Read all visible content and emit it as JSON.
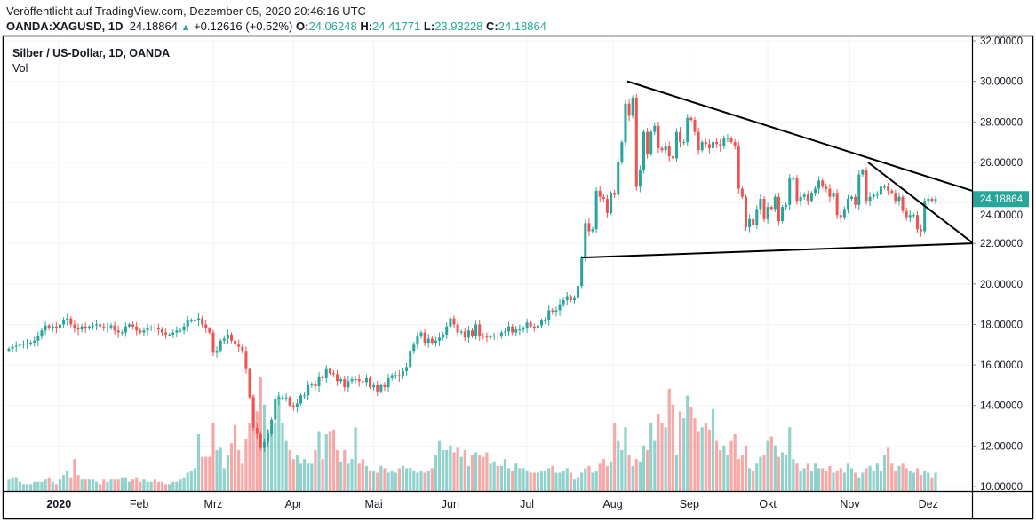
{
  "header": {
    "published": "Veröffentlicht auf TradingView.com, Dezember 05, 2020 20:46:16 UTC",
    "symbol": "OANDA:XAGUSD, 1D",
    "last": "24.18864",
    "change": "+0.12616 (+0.52%)",
    "o_label": "O:",
    "o": "24.06248",
    "h_label": "H:",
    "h": "24.41771",
    "l_label": "L:",
    "l": "23.93228",
    "c_label": "C:",
    "c": "24.18864"
  },
  "legend": {
    "title": "Silber / US-Dollar, 1D, OANDA",
    "volume": "Vol"
  },
  "colors": {
    "up": "#26a69a",
    "down": "#ef5350",
    "grid": "#f0f3fa",
    "line": "#000000"
  },
  "chart_data": {
    "type": "candlestick",
    "title": "Silber / US-Dollar, 1D, OANDA",
    "ylim": [
      10,
      32
    ],
    "y_ticks": [
      "32.00000",
      "30.00000",
      "28.00000",
      "26.00000",
      "24.00000",
      "22.00000",
      "20.00000",
      "18.00000",
      "16.00000",
      "14.00000",
      "12.00000",
      "10.00000"
    ],
    "y_tick_values": [
      32,
      30,
      28,
      26,
      24,
      22,
      20,
      18,
      16,
      14,
      12,
      10
    ],
    "last_price_label": "24.18864",
    "last_price": 24.18864,
    "x_ticks": [
      {
        "label": "2020",
        "index": 13.7
      },
      {
        "label": "Feb",
        "index": 35.7
      },
      {
        "label": "Mrz",
        "index": 56
      },
      {
        "label": "Apr",
        "index": 78
      },
      {
        "label": "Mai",
        "index": 100
      },
      {
        "label": "Jun",
        "index": 121
      },
      {
        "label": "Jul",
        "index": 142
      },
      {
        "label": "Aug",
        "index": 165.5
      },
      {
        "label": "Sep",
        "index": 186.5
      },
      {
        "label": "Okt",
        "index": 208
      },
      {
        "label": "Nov",
        "index": 230.5
      },
      {
        "label": "Dez",
        "index": 252
      }
    ],
    "closes": [
      16.8,
      16.9,
      16.95,
      17.0,
      17.05,
      17.05,
      17.1,
      17.2,
      17.4,
      17.7,
      17.95,
      17.8,
      17.9,
      17.8,
      18.0,
      18.2,
      18.3,
      18.0,
      17.8,
      17.75,
      17.9,
      17.8,
      17.9,
      17.95,
      18.0,
      17.9,
      17.85,
      17.85,
      17.95,
      17.7,
      17.6,
      17.6,
      17.9,
      18.0,
      17.9,
      17.7,
      17.6,
      17.7,
      17.8,
      17.85,
      17.8,
      17.75,
      17.6,
      17.5,
      17.5,
      17.6,
      17.7,
      17.7,
      17.9,
      18.2,
      18.2,
      18.2,
      18.3,
      18.0,
      17.8,
      17.6,
      16.6,
      16.7,
      17.2,
      17.3,
      17.5,
      17.2,
      17.0,
      16.9,
      16.7,
      15.8,
      14.4,
      12.9,
      12.6,
      11.9,
      12.2,
      12.6,
      13.3,
      14.3,
      14.4,
      14.4,
      14.4,
      14.0,
      13.9,
      14.1,
      14.5,
      14.5,
      15.0,
      15.05,
      14.95,
      15.4,
      15.35,
      15.8,
      15.6,
      15.55,
      15.2,
      15.3,
      14.9,
      15.2,
      15.3,
      15.3,
      15.2,
      15.15,
      15.35,
      14.9,
      15.0,
      14.7,
      15.0,
      14.9,
      15.35,
      15.5,
      15.5,
      15.45,
      15.7,
      15.9,
      16.7,
      17.0,
      17.4,
      17.6,
      17.1,
      17.3,
      17.1,
      17.2,
      17.35,
      17.5,
      17.9,
      18.3,
      18.0,
      17.6,
      17.65,
      17.35,
      17.7,
      17.45,
      18.0,
      17.45,
      17.4,
      17.35,
      17.4,
      17.45,
      17.4,
      17.6,
      17.65,
      17.9,
      17.6,
      17.75,
      17.75,
      17.8,
      18.1,
      17.9,
      17.8,
      17.95,
      18.2,
      18.2,
      18.7,
      18.6,
      18.7,
      19.0,
      19.2,
      19.4,
      19.2,
      19.3,
      19.9,
      21.3,
      23.0,
      22.6,
      22.7,
      24.6,
      24.3,
      24.2,
      23.5,
      24.5,
      24.4,
      26.0,
      27.0,
      28.9,
      28.3,
      29.2,
      24.8,
      25.6,
      27.5,
      26.4,
      27.5,
      27.8,
      26.7,
      26.6,
      26.8,
      26.3,
      26.2,
      27.5,
      27.0,
      27.0,
      28.2,
      28.1,
      27.5,
      26.6,
      27.0,
      26.9,
      26.7,
      27.0,
      26.9,
      26.8,
      27.2,
      27.2,
      27.0,
      26.8,
      24.7,
      24.3,
      22.8,
      23.2,
      22.9,
      23.7,
      24.2,
      23.2,
      23.8,
      23.7,
      24.3,
      23.1,
      23.8,
      23.9,
      25.2,
      25.2,
      24.1,
      24.3,
      24.4,
      24.1,
      24.5,
      24.7,
      25.1,
      24.8,
      24.7,
      24.3,
      24.5,
      23.4,
      23.3,
      23.7,
      24.2,
      24.3,
      23.9,
      25.4,
      25.6,
      24.1,
      24.3,
      24.4,
      24.4,
      24.8,
      24.8,
      24.6,
      24.5,
      24.1,
      24.3,
      23.6,
      23.3,
      23.4,
      23.4,
      22.7,
      22.6,
      24.1,
      24.2,
      24.1,
      24.19
    ],
    "volumes": [
      5,
      6,
      6,
      4,
      3,
      3,
      3,
      4,
      4,
      4,
      5,
      6,
      4,
      3,
      5,
      7,
      9,
      6,
      14,
      7,
      5,
      5,
      5,
      5,
      4,
      3,
      5,
      4,
      5,
      5,
      5,
      6,
      6,
      4,
      5,
      6,
      4,
      5,
      4,
      4,
      5,
      4,
      4,
      3,
      3,
      4,
      4,
      5,
      6,
      8,
      9,
      10,
      25,
      15,
      15,
      15,
      30,
      18,
      19,
      10,
      16,
      21,
      29,
      18,
      12,
      23,
      30,
      42,
      35,
      50,
      38,
      27,
      26,
      30,
      42,
      30,
      22,
      18,
      14,
      16,
      12,
      14,
      12,
      12,
      18,
      26,
      14,
      25,
      26,
      27,
      18,
      13,
      18,
      12,
      14,
      28,
      12,
      14,
      11,
      9,
      9,
      8,
      11,
      10,
      8,
      9,
      8,
      10,
      11,
      10,
      10,
      9,
      8,
      9,
      8,
      9,
      10,
      16,
      22,
      18,
      18,
      20,
      17,
      19,
      15,
      18,
      11,
      16,
      17,
      16,
      15,
      17,
      12,
      13,
      11,
      11,
      14,
      10,
      9,
      12,
      10,
      10,
      9,
      8,
      8,
      8,
      9,
      9,
      10,
      11,
      8,
      8,
      9,
      10,
      8,
      5,
      6,
      8,
      10,
      11,
      8,
      9,
      12,
      14,
      11,
      13,
      30,
      22,
      18,
      28,
      16,
      11,
      14,
      13,
      20,
      18,
      30,
      22,
      34,
      30,
      28,
      45,
      38,
      16,
      35,
      32,
      42,
      37,
      32,
      26,
      28,
      30,
      27,
      36,
      22,
      18,
      20,
      16,
      22,
      25,
      14,
      16,
      20,
      10,
      9,
      12,
      15,
      16,
      22,
      24,
      20,
      15,
      17,
      16,
      28,
      14,
      12,
      9,
      10,
      12,
      9,
      12,
      10,
      10,
      9,
      11,
      8,
      9,
      10,
      8,
      12,
      10,
      8,
      6,
      8,
      10,
      11,
      9,
      12,
      9,
      16,
      19,
      12,
      9,
      11,
      12,
      10,
      9,
      8,
      10,
      7,
      9,
      8,
      6,
      8,
      10,
      9,
      8,
      7,
      6,
      9,
      8,
      7,
      8,
      7,
      6
    ],
    "trend_lines": [
      {
        "from": [
          169.5,
          30.0
        ],
        "to": [
          265,
          24.6
        ]
      },
      {
        "from": [
          157,
          21.3
        ],
        "to": [
          264,
          22.0
        ]
      },
      {
        "from": [
          235.5,
          26.0
        ],
        "to": [
          264,
          22.05
        ]
      }
    ]
  }
}
